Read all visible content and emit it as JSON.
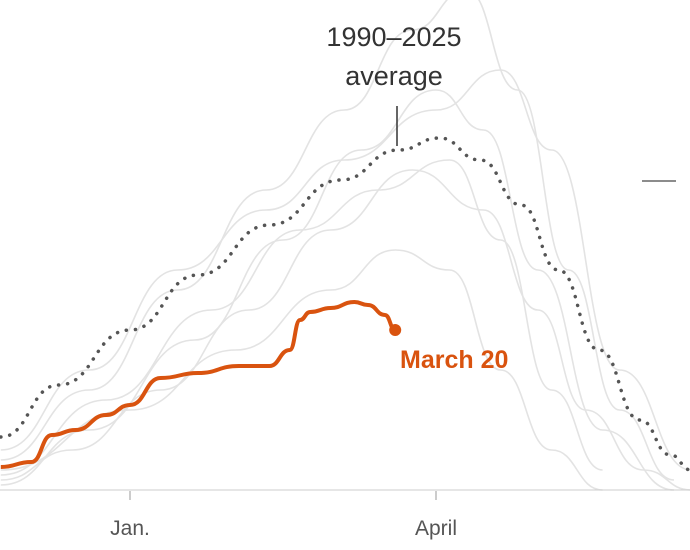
{
  "chart_data": {
    "type": "line",
    "title": "",
    "xlabel": "",
    "ylabel": "",
    "x_ticks": [
      "Jan.",
      "April"
    ],
    "grid": false,
    "colors": {
      "current": "#d9530f",
      "average": "#555555",
      "years": "#e3e3e3",
      "axis": "#cccccc"
    },
    "annotations": {
      "average_label_line1": "1990–2025",
      "average_label_line2": "average",
      "current_label": "March 20"
    },
    "series": [
      {
        "name": "1990–2025 average",
        "style": "dotted",
        "points": [
          [
            "Nov 24",
            5.3
          ],
          [
            "Dec 11",
            10.5
          ],
          [
            "Jan 1",
            16
          ],
          [
            "Jan 21",
            21.5
          ],
          [
            "Feb 11",
            26.5
          ],
          [
            "Mar 4",
            31
          ],
          [
            "Mar 21",
            34
          ],
          [
            "Apr 2",
            35.2
          ],
          [
            "Apr 14",
            33
          ],
          [
            "Apr 26",
            28.5
          ],
          [
            "May 7",
            22
          ],
          [
            "May 19",
            14
          ],
          [
            "May 31",
            7
          ],
          [
            "Jun 9",
            3.5
          ],
          [
            "Jun 15",
            2
          ]
        ]
      },
      {
        "name": "March 20",
        "style": "current",
        "points": [
          [
            "Nov 24",
            2.3
          ],
          [
            "Dec 3",
            2.8
          ],
          [
            "Dec 9",
            5.5
          ],
          [
            "Dec 16",
            6
          ],
          [
            "Dec 25",
            7.5
          ],
          [
            "Jan 1",
            8.5
          ],
          [
            "Jan 10",
            11.2
          ],
          [
            "Jan 21",
            11.7
          ],
          [
            "Feb 2",
            12.4
          ],
          [
            "Feb 11",
            12.4
          ],
          [
            "Feb 17",
            14
          ],
          [
            "Feb 20",
            17
          ],
          [
            "Feb 23",
            17.8
          ],
          [
            "Mar 1",
            18.2
          ],
          [
            "Mar 8",
            18.8
          ],
          [
            "Mar 12",
            18.5
          ],
          [
            "Mar 17",
            17.5
          ],
          [
            "Mar 20",
            16
          ]
        ]
      },
      {
        "style": "year",
        "points": [
          [
            "Nov 24",
            3
          ],
          [
            "Dec 20",
            10
          ],
          [
            "Jan 15",
            20
          ],
          [
            "Feb 10",
            30
          ],
          [
            "Mar 5",
            38
          ],
          [
            "Mar 25",
            46
          ],
          [
            "Apr 10",
            50
          ],
          [
            "Apr 25",
            40
          ],
          [
            "May 10",
            22
          ],
          [
            "May 25",
            8
          ],
          [
            "Jun 10",
            1
          ]
        ]
      },
      {
        "style": "year",
        "points": [
          [
            "Nov 24",
            1
          ],
          [
            "Dec 15",
            4
          ],
          [
            "Jan 10",
            10
          ],
          [
            "Feb 5",
            18
          ],
          [
            "Mar 1",
            26
          ],
          [
            "Mar 25",
            32
          ],
          [
            "Apr 15",
            28
          ],
          [
            "May 1",
            18
          ],
          [
            "May 15",
            8
          ],
          [
            "Jun 1",
            2
          ],
          [
            "Jun 15",
            0
          ]
        ]
      },
      {
        "style": "year",
        "points": [
          [
            "Nov 24",
            0.5
          ],
          [
            "Dec 20",
            6
          ],
          [
            "Jan 20",
            15
          ],
          [
            "Feb 15",
            25
          ],
          [
            "Mar 10",
            34
          ],
          [
            "Apr 1",
            40
          ],
          [
            "Apr 15",
            36
          ],
          [
            "May 1",
            22
          ],
          [
            "May 20",
            6
          ],
          [
            "Jun 10",
            0
          ]
        ]
      },
      {
        "style": "year",
        "points": [
          [
            "Nov 24",
            2
          ],
          [
            "Jan 1",
            8
          ],
          [
            "Feb 1",
            14
          ],
          [
            "Mar 1",
            20
          ],
          [
            "Mar 20",
            24
          ],
          [
            "Apr 5",
            22
          ],
          [
            "Apr 20",
            12
          ],
          [
            "May 5",
            4
          ],
          [
            "May 20",
            0
          ]
        ]
      },
      {
        "style": "year",
        "points": [
          [
            "Nov 24",
            4
          ],
          [
            "Dec 20",
            12
          ],
          [
            "Jan 15",
            22
          ],
          [
            "Feb 10",
            28
          ],
          [
            "Mar 5",
            33
          ],
          [
            "Apr 1",
            38
          ],
          [
            "Apr 20",
            42
          ],
          [
            "May 5",
            34
          ],
          [
            "May 25",
            12
          ],
          [
            "Jun 15",
            2
          ]
        ]
      },
      {
        "style": "year",
        "points": [
          [
            "Nov 24",
            1.5
          ],
          [
            "Dec 25",
            9
          ],
          [
            "Jan 25",
            18
          ],
          [
            "Feb 20",
            26
          ],
          [
            "Mar 15",
            30
          ],
          [
            "Apr 5",
            33
          ],
          [
            "Apr 20",
            25
          ],
          [
            "May 5",
            10
          ],
          [
            "May 20",
            2
          ]
        ]
      }
    ]
  }
}
